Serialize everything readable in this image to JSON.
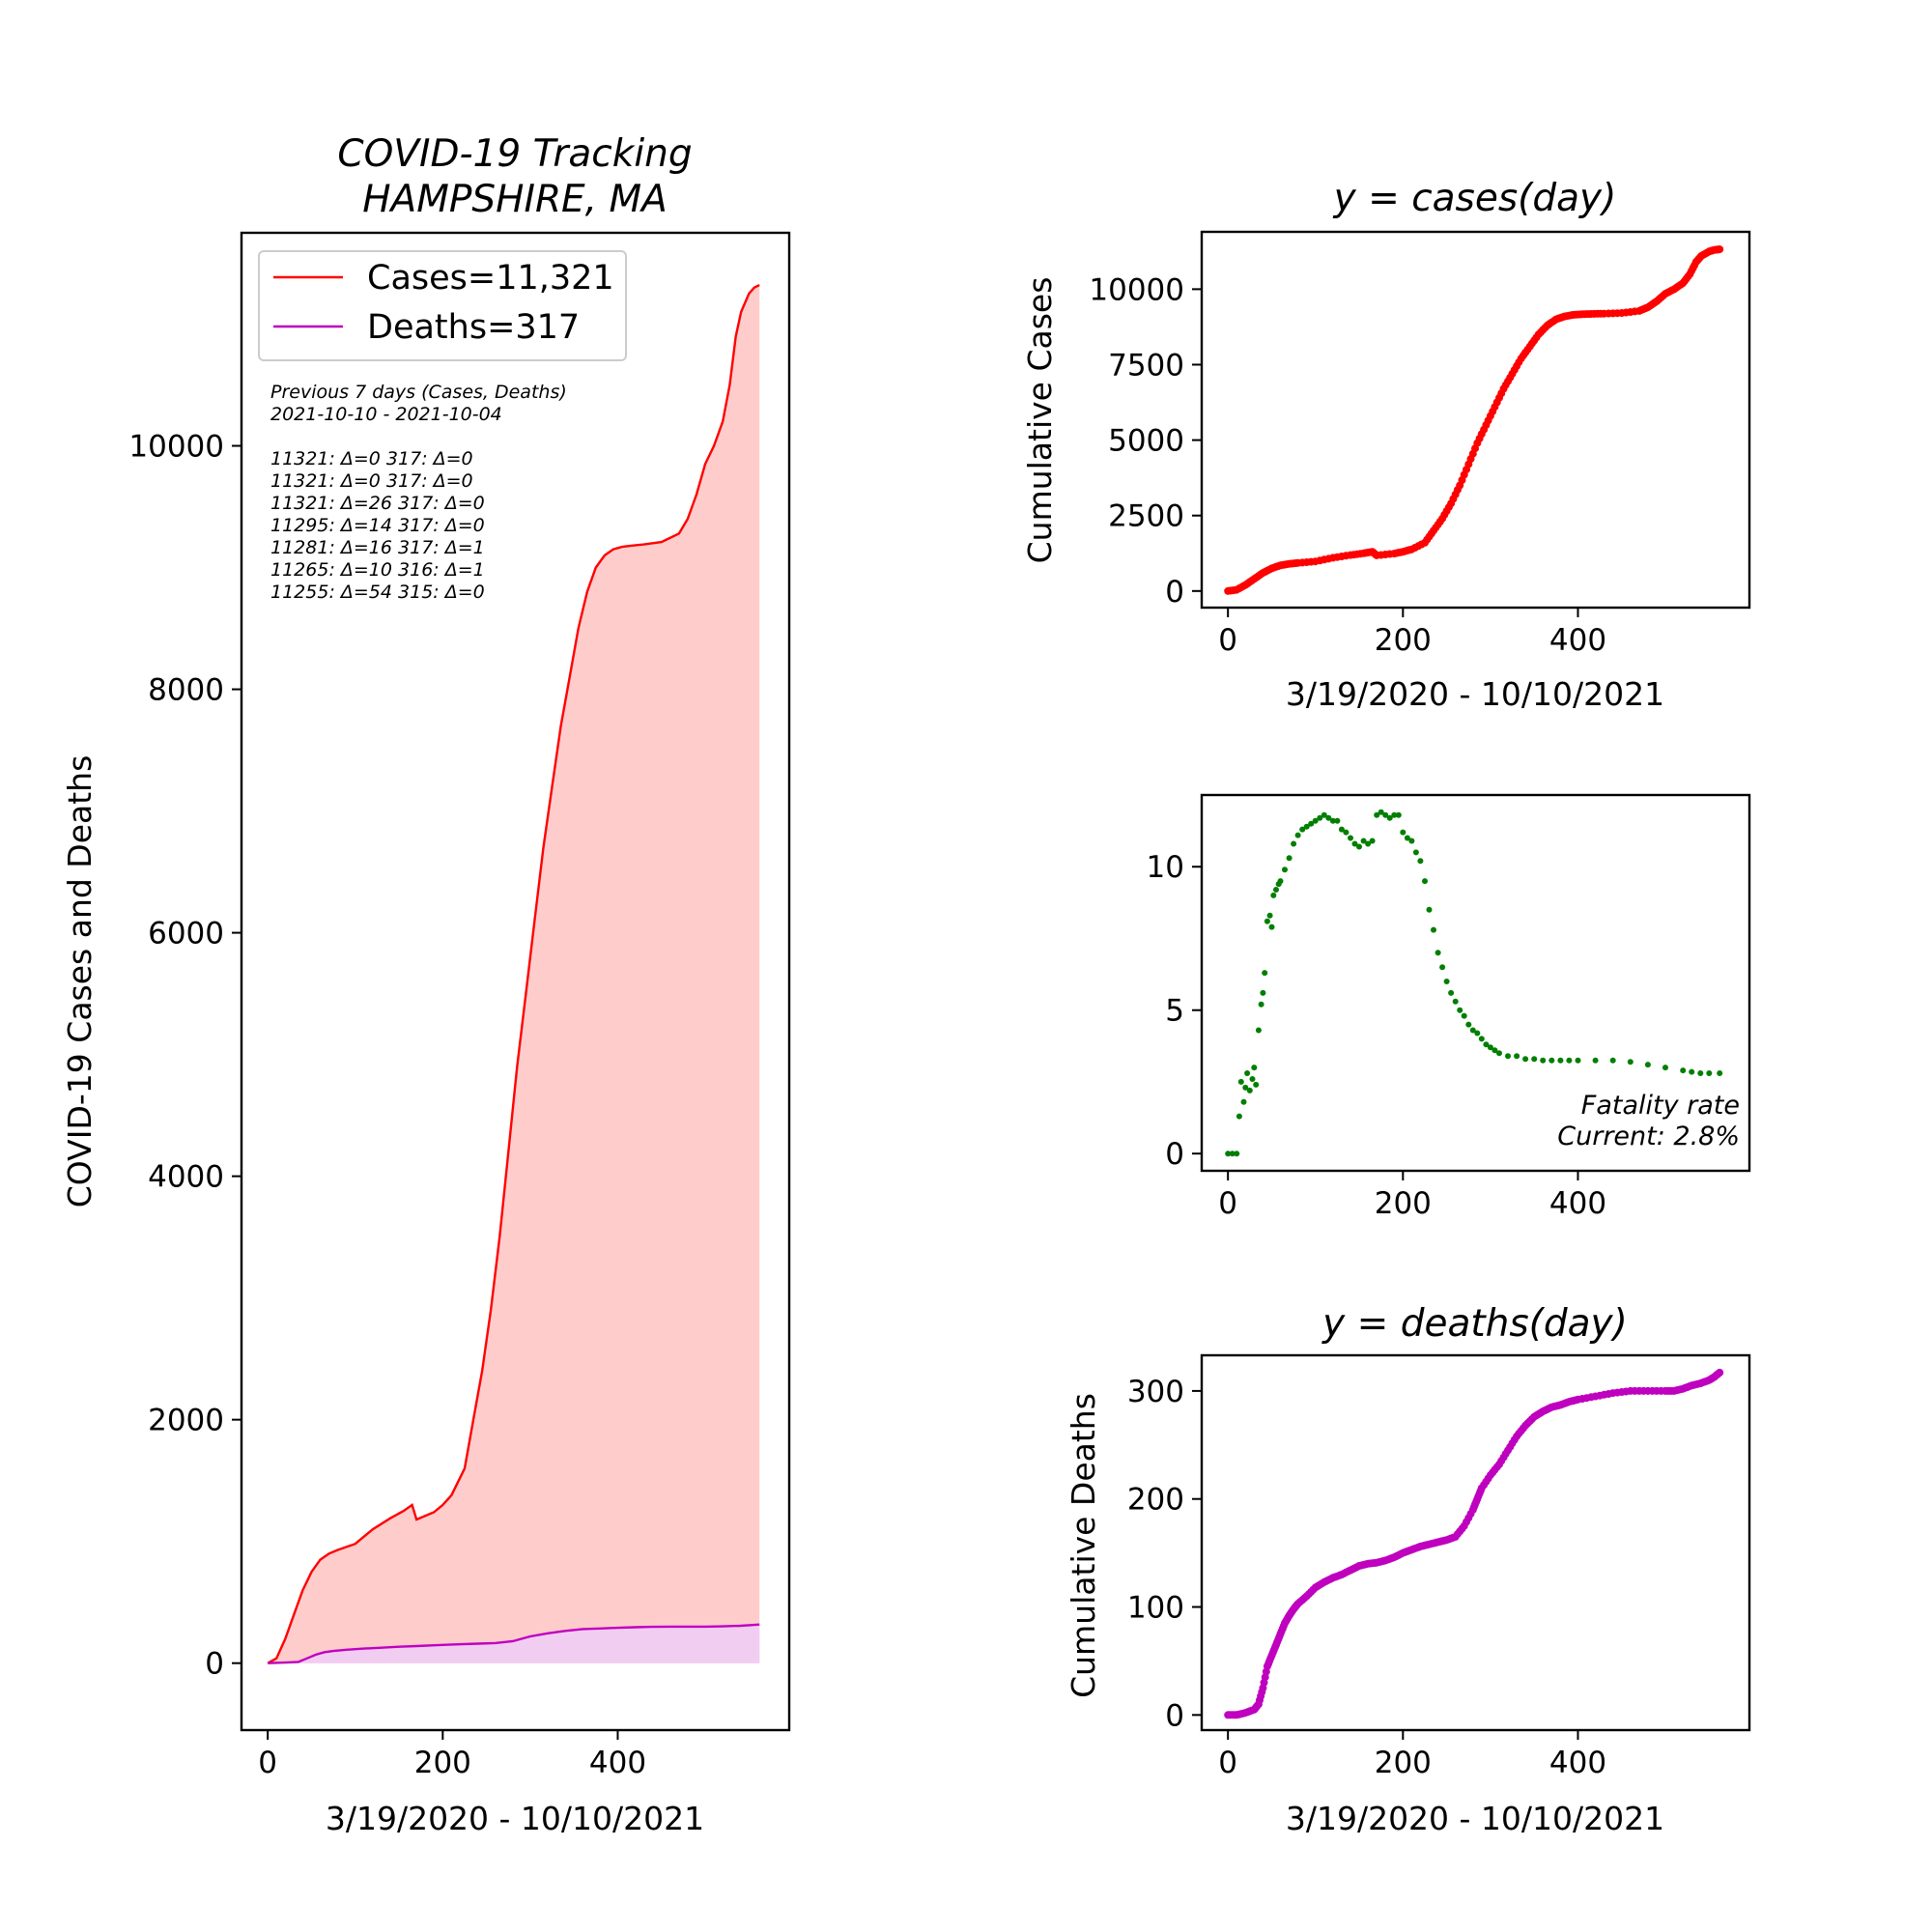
{
  "chart_data": [
    {
      "id": "main",
      "type": "area",
      "title_lines": [
        "COVID-19 Tracking",
        "HAMPSHIRE, MA"
      ],
      "xlabel": "3/19/2020 - 10/10/2021",
      "ylabel": "COVID-19 Cases and Deaths",
      "xlim": [
        -30,
        596
      ],
      "ylim": [
        -550,
        11750
      ],
      "x_ticks": [
        0,
        200,
        400
      ],
      "y_ticks": [
        0,
        2000,
        4000,
        6000,
        8000,
        10000
      ],
      "legend": {
        "position": "upper-left",
        "entries": [
          {
            "label": "Cases=11,321",
            "color": "#ff0000"
          },
          {
            "label": "Deaths=317",
            "color": "#bf00bf"
          }
        ]
      },
      "note_lines": [
        "Previous 7 days (Cases, Deaths)",
        "2021-10-10 - 2021-10-04",
        "",
        "11321: Δ=0 317: Δ=0",
        "11321: Δ=0 317: Δ=0",
        "11321: Δ=26 317: Δ=0",
        "11295: Δ=14 317: Δ=0",
        "11281: Δ=16 317: Δ=1",
        "11265: Δ=10 316: Δ=1",
        "11255: Δ=54 315: Δ=0"
      ],
      "series": [
        {
          "name": "Cases",
          "color": "#ff0000",
          "fill": "#ffcccc",
          "x": [
            0,
            10,
            20,
            30,
            40,
            50,
            60,
            70,
            80,
            100,
            120,
            140,
            155,
            165,
            170,
            190,
            200,
            210,
            225,
            235,
            245,
            255,
            265,
            275,
            285,
            295,
            305,
            315,
            325,
            335,
            345,
            355,
            365,
            375,
            385,
            395,
            405,
            415,
            430,
            450,
            470,
            480,
            490,
            500,
            510,
            520,
            528,
            535,
            541,
            550,
            556,
            562
          ],
          "y": [
            0,
            40,
            200,
            400,
            600,
            750,
            850,
            900,
            930,
            980,
            1100,
            1190,
            1250,
            1300,
            1180,
            1240,
            1300,
            1380,
            1600,
            2000,
            2400,
            2900,
            3500,
            4200,
            4900,
            5500,
            6100,
            6700,
            7200,
            7700,
            8100,
            8500,
            8800,
            9000,
            9100,
            9150,
            9170,
            9180,
            9190,
            9210,
            9280,
            9400,
            9600,
            9850,
            10000,
            10200,
            10500,
            10900,
            11100,
            11250,
            11300,
            11321
          ]
        },
        {
          "name": "Deaths",
          "color": "#bf00bf",
          "fill": "#f2cdf2",
          "x": [
            0,
            20,
            35,
            45,
            55,
            65,
            75,
            90,
            110,
            130,
            150,
            170,
            190,
            210,
            240,
            260,
            280,
            290,
            300,
            320,
            340,
            360,
            380,
            400,
            420,
            440,
            460,
            480,
            500,
            520,
            540,
            550,
            562
          ],
          "y": [
            0,
            5,
            10,
            40,
            70,
            90,
            100,
            110,
            120,
            127,
            135,
            140,
            147,
            153,
            160,
            165,
            180,
            200,
            220,
            245,
            265,
            280,
            285,
            290,
            295,
            298,
            300,
            300,
            300,
            302,
            307,
            312,
            317
          ]
        }
      ]
    },
    {
      "id": "cases",
      "type": "scatter",
      "title": "y = cases(day)",
      "xlabel": "3/19/2020 - 10/10/2021",
      "ylabel": "Cumulative Cases",
      "xlim": [
        -30,
        596
      ],
      "ylim": [
        -550,
        11900
      ],
      "x_ticks": [
        0,
        200,
        400
      ],
      "y_ticks": [
        0,
        2500,
        5000,
        7500,
        10000
      ],
      "series": [
        {
          "name": "",
          "color": "#ff0000",
          "x": [
            0,
            10,
            20,
            30,
            40,
            50,
            60,
            70,
            80,
            100,
            120,
            140,
            155,
            165,
            170,
            190,
            200,
            210,
            225,
            235,
            245,
            255,
            265,
            275,
            285,
            295,
            305,
            315,
            325,
            335,
            345,
            355,
            365,
            375,
            385,
            395,
            405,
            415,
            430,
            450,
            470,
            480,
            490,
            500,
            510,
            520,
            528,
            535,
            541,
            550,
            556,
            562
          ],
          "y": [
            0,
            40,
            200,
            400,
            600,
            750,
            850,
            900,
            930,
            980,
            1100,
            1190,
            1250,
            1300,
            1180,
            1240,
            1300,
            1380,
            1600,
            2000,
            2400,
            2900,
            3500,
            4200,
            4900,
            5500,
            6100,
            6700,
            7200,
            7700,
            8100,
            8500,
            8800,
            9000,
            9100,
            9150,
            9170,
            9180,
            9190,
            9210,
            9280,
            9400,
            9600,
            9850,
            10000,
            10200,
            10500,
            10900,
            11100,
            11250,
            11300,
            11321
          ]
        }
      ]
    },
    {
      "id": "fatality",
      "type": "scatter",
      "title": "",
      "xlabel": "",
      "ylabel": "",
      "xlim": [
        -30,
        596
      ],
      "ylim": [
        -0.6,
        12.5
      ],
      "x_ticks": [
        0,
        200,
        400
      ],
      "y_ticks": [
        0,
        5,
        10
      ],
      "annotation_lines": [
        "Fatality rate",
        "Current: 2.8%"
      ],
      "series": [
        {
          "name": "",
          "color": "#007f00",
          "x": [
            0,
            5,
            10,
            13,
            15,
            18,
            20,
            22,
            25,
            28,
            30,
            32,
            35,
            38,
            40,
            42,
            45,
            48,
            50,
            52,
            55,
            58,
            60,
            65,
            70,
            75,
            80,
            85,
            90,
            95,
            100,
            105,
            110,
            115,
            120,
            125,
            130,
            135,
            140,
            145,
            150,
            155,
            160,
            165,
            170,
            175,
            180,
            185,
            190,
            195,
            200,
            205,
            210,
            215,
            220,
            225,
            230,
            235,
            240,
            245,
            250,
            255,
            260,
            265,
            270,
            275,
            280,
            285,
            290,
            295,
            300,
            305,
            310,
            320,
            330,
            340,
            350,
            360,
            370,
            380,
            390,
            400,
            420,
            440,
            460,
            480,
            500,
            520,
            530,
            540,
            550,
            562
          ],
          "y": [
            0,
            0,
            0,
            1.3,
            2.5,
            1.8,
            2.3,
            2.8,
            2.2,
            2.6,
            3.0,
            2.4,
            4.3,
            5.2,
            5.6,
            6.3,
            8.1,
            8.3,
            7.9,
            9.0,
            9.2,
            9.4,
            9.5,
            9.9,
            10.3,
            10.8,
            11.1,
            11.3,
            11.4,
            11.5,
            11.6,
            11.7,
            11.8,
            11.7,
            11.6,
            11.6,
            11.3,
            11.2,
            11.0,
            10.8,
            10.7,
            10.9,
            10.8,
            10.9,
            11.8,
            11.9,
            11.8,
            11.7,
            11.8,
            11.8,
            11.2,
            11.0,
            10.9,
            10.5,
            10.2,
            9.5,
            8.5,
            7.8,
            7.0,
            6.5,
            6.0,
            5.6,
            5.3,
            5.0,
            4.8,
            4.5,
            4.3,
            4.2,
            4.0,
            3.8,
            3.7,
            3.6,
            3.5,
            3.4,
            3.4,
            3.3,
            3.3,
            3.25,
            3.25,
            3.25,
            3.25,
            3.25,
            3.25,
            3.25,
            3.2,
            3.1,
            3.0,
            2.9,
            2.85,
            2.8,
            2.8,
            2.8
          ]
        }
      ]
    },
    {
      "id": "deaths",
      "type": "scatter",
      "title": "y = deaths(day)",
      "xlabel": "3/19/2020 - 10/10/2021",
      "ylabel": "Cumulative Deaths",
      "xlim": [
        -30,
        596
      ],
      "ylim": [
        -14,
        333
      ],
      "x_ticks": [
        0,
        200,
        400
      ],
      "y_ticks": [
        0,
        100,
        200,
        300
      ],
      "series": [
        {
          "name": "",
          "color": "#bf00bf",
          "x": [
            0,
            10,
            20,
            30,
            35,
            40,
            45,
            50,
            55,
            60,
            65,
            70,
            75,
            80,
            90,
            100,
            110,
            120,
            130,
            140,
            150,
            160,
            170,
            180,
            190,
            200,
            210,
            220,
            230,
            240,
            250,
            260,
            270,
            280,
            285,
            290,
            300,
            310,
            320,
            330,
            340,
            350,
            360,
            370,
            380,
            390,
            400,
            420,
            440,
            460,
            480,
            500,
            510,
            520,
            530,
            540,
            550,
            556,
            562
          ],
          "y": [
            0,
            0,
            2,
            5,
            10,
            25,
            45,
            55,
            65,
            75,
            85,
            92,
            98,
            103,
            110,
            118,
            123,
            127,
            130,
            134,
            138,
            140,
            141,
            143,
            146,
            150,
            153,
            156,
            158,
            160,
            162,
            165,
            175,
            190,
            200,
            210,
            222,
            232,
            245,
            258,
            268,
            276,
            281,
            285,
            287,
            290,
            292,
            295,
            298,
            300,
            300,
            300,
            300,
            302,
            305,
            307,
            310,
            313,
            317
          ]
        }
      ]
    }
  ]
}
